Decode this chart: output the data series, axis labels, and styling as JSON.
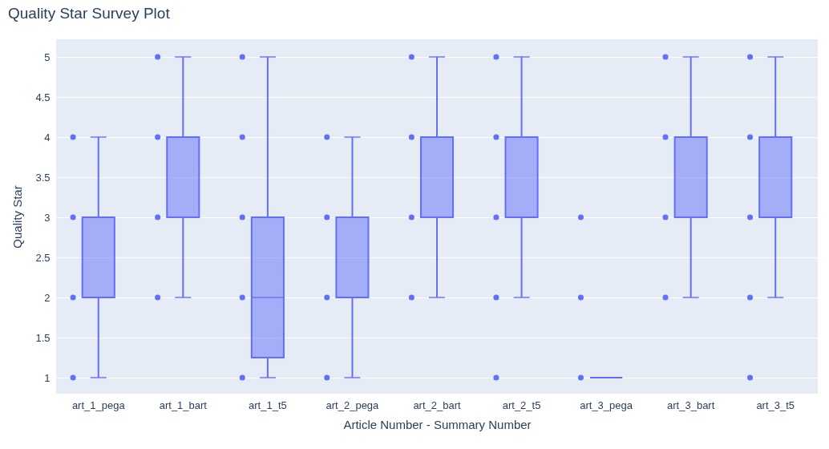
{
  "chart_data": {
    "type": "box",
    "title": "Quality Star Survey Plot",
    "xlabel": "Article Number - Summary Number",
    "ylabel": "Quality Star",
    "categories": [
      "art_1_pega",
      "art_1_bart",
      "art_1_t5",
      "art_2_pega",
      "art_2_bart",
      "art_2_t5",
      "art_3_pega",
      "art_3_bart",
      "art_3_t5"
    ],
    "color": "#636efa",
    "boxes": [
      {
        "low": 1,
        "q1": 2,
        "median": 2,
        "q3": 3,
        "high": 4
      },
      {
        "low": 2,
        "q1": 3,
        "median": 4,
        "q3": 4,
        "high": 5
      },
      {
        "low": 1,
        "q1": 1.25,
        "median": 2,
        "q3": 3,
        "high": 5
      },
      {
        "low": 1,
        "q1": 2,
        "median": 2,
        "q3": 3,
        "high": 4
      },
      {
        "low": 2,
        "q1": 3,
        "median": 4,
        "q3": 4,
        "high": 5
      },
      {
        "low": 2,
        "q1": 3,
        "median": 3,
        "q3": 4,
        "high": 5
      },
      {
        "low": 1,
        "q1": 1,
        "median": 1,
        "q3": 1,
        "high": 1
      },
      {
        "low": 2,
        "q1": 3,
        "median": 4,
        "q3": 4,
        "high": 5
      },
      {
        "low": 2,
        "q1": 3,
        "median": 3,
        "q3": 4,
        "high": 5
      }
    ],
    "series": [
      {
        "type": "scatter",
        "color": "#636efa",
        "x": [
          "art_1_pega",
          "art_1_pega",
          "art_1_pega",
          "art_1_pega",
          "art_1_bart",
          "art_1_bart",
          "art_1_bart",
          "art_1_bart",
          "art_1_t5",
          "art_1_t5",
          "art_1_t5",
          "art_1_t5",
          "art_1_t5",
          "art_2_pega",
          "art_2_pega",
          "art_2_pega",
          "art_2_pega",
          "art_2_bart",
          "art_2_bart",
          "art_2_bart",
          "art_2_bart",
          "art_2_t5",
          "art_2_t5",
          "art_2_t5",
          "art_2_t5",
          "art_2_t5",
          "art_3_pega",
          "art_3_pega",
          "art_3_pega",
          "art_3_bart",
          "art_3_bart",
          "art_3_bart",
          "art_3_bart",
          "art_3_t5",
          "art_3_t5",
          "art_3_t5",
          "art_3_t5",
          "art_3_t5"
        ],
        "values": [
          1,
          2,
          3,
          4,
          2,
          3,
          4,
          5,
          1,
          2,
          3,
          4,
          5,
          1,
          2,
          3,
          4,
          2,
          3,
          4,
          5,
          1,
          2,
          3,
          4,
          5,
          1,
          2,
          3,
          2,
          3,
          4,
          5,
          1,
          2,
          3,
          4,
          5
        ]
      }
    ],
    "ylim": [
      0.8,
      5.22
    ],
    "yticks": [
      1,
      1.5,
      2,
      2.5,
      3,
      3.5,
      4,
      4.5,
      5
    ],
    "grid": "y",
    "marker": "circle"
  }
}
